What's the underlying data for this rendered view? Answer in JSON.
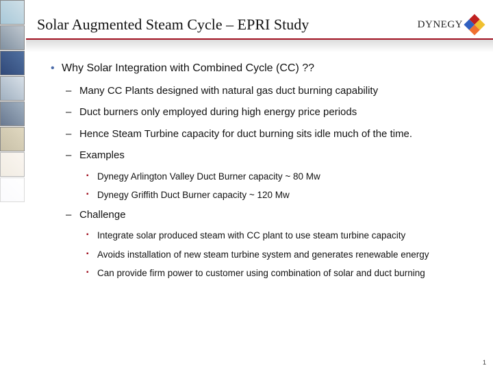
{
  "header": {
    "title": "Solar Augmented Steam Cycle – EPRI Study",
    "brand": "DYNEGY"
  },
  "colors": {
    "rule": "#a01020",
    "bullet_primary": "#4a6aa8",
    "bullet_square": "#a01020",
    "background": "#ffffff"
  },
  "content": {
    "main": "Why Solar Integration with Combined Cycle (CC) ??",
    "sub": [
      "Many CC Plants designed with natural gas duct burning capability",
      "Duct burners only employed during high energy price periods",
      "Hence Steam Turbine capacity for duct burning sits idle much of the time.",
      "Examples",
      "Challenge"
    ],
    "examples": [
      "Dynegy Arlington Valley Duct Burner capacity ~ 80 Mw",
      "Dynegy Griffith Duct Burner capacity ~ 120 Mw"
    ],
    "challenge": [
      "Integrate solar produced steam with CC plant to use steam turbine capacity",
      "Avoids installation of new steam turbine system and generates renewable energy",
      "Can provide firm power to customer using combination of solar and duct burning"
    ]
  },
  "page_number": "1"
}
